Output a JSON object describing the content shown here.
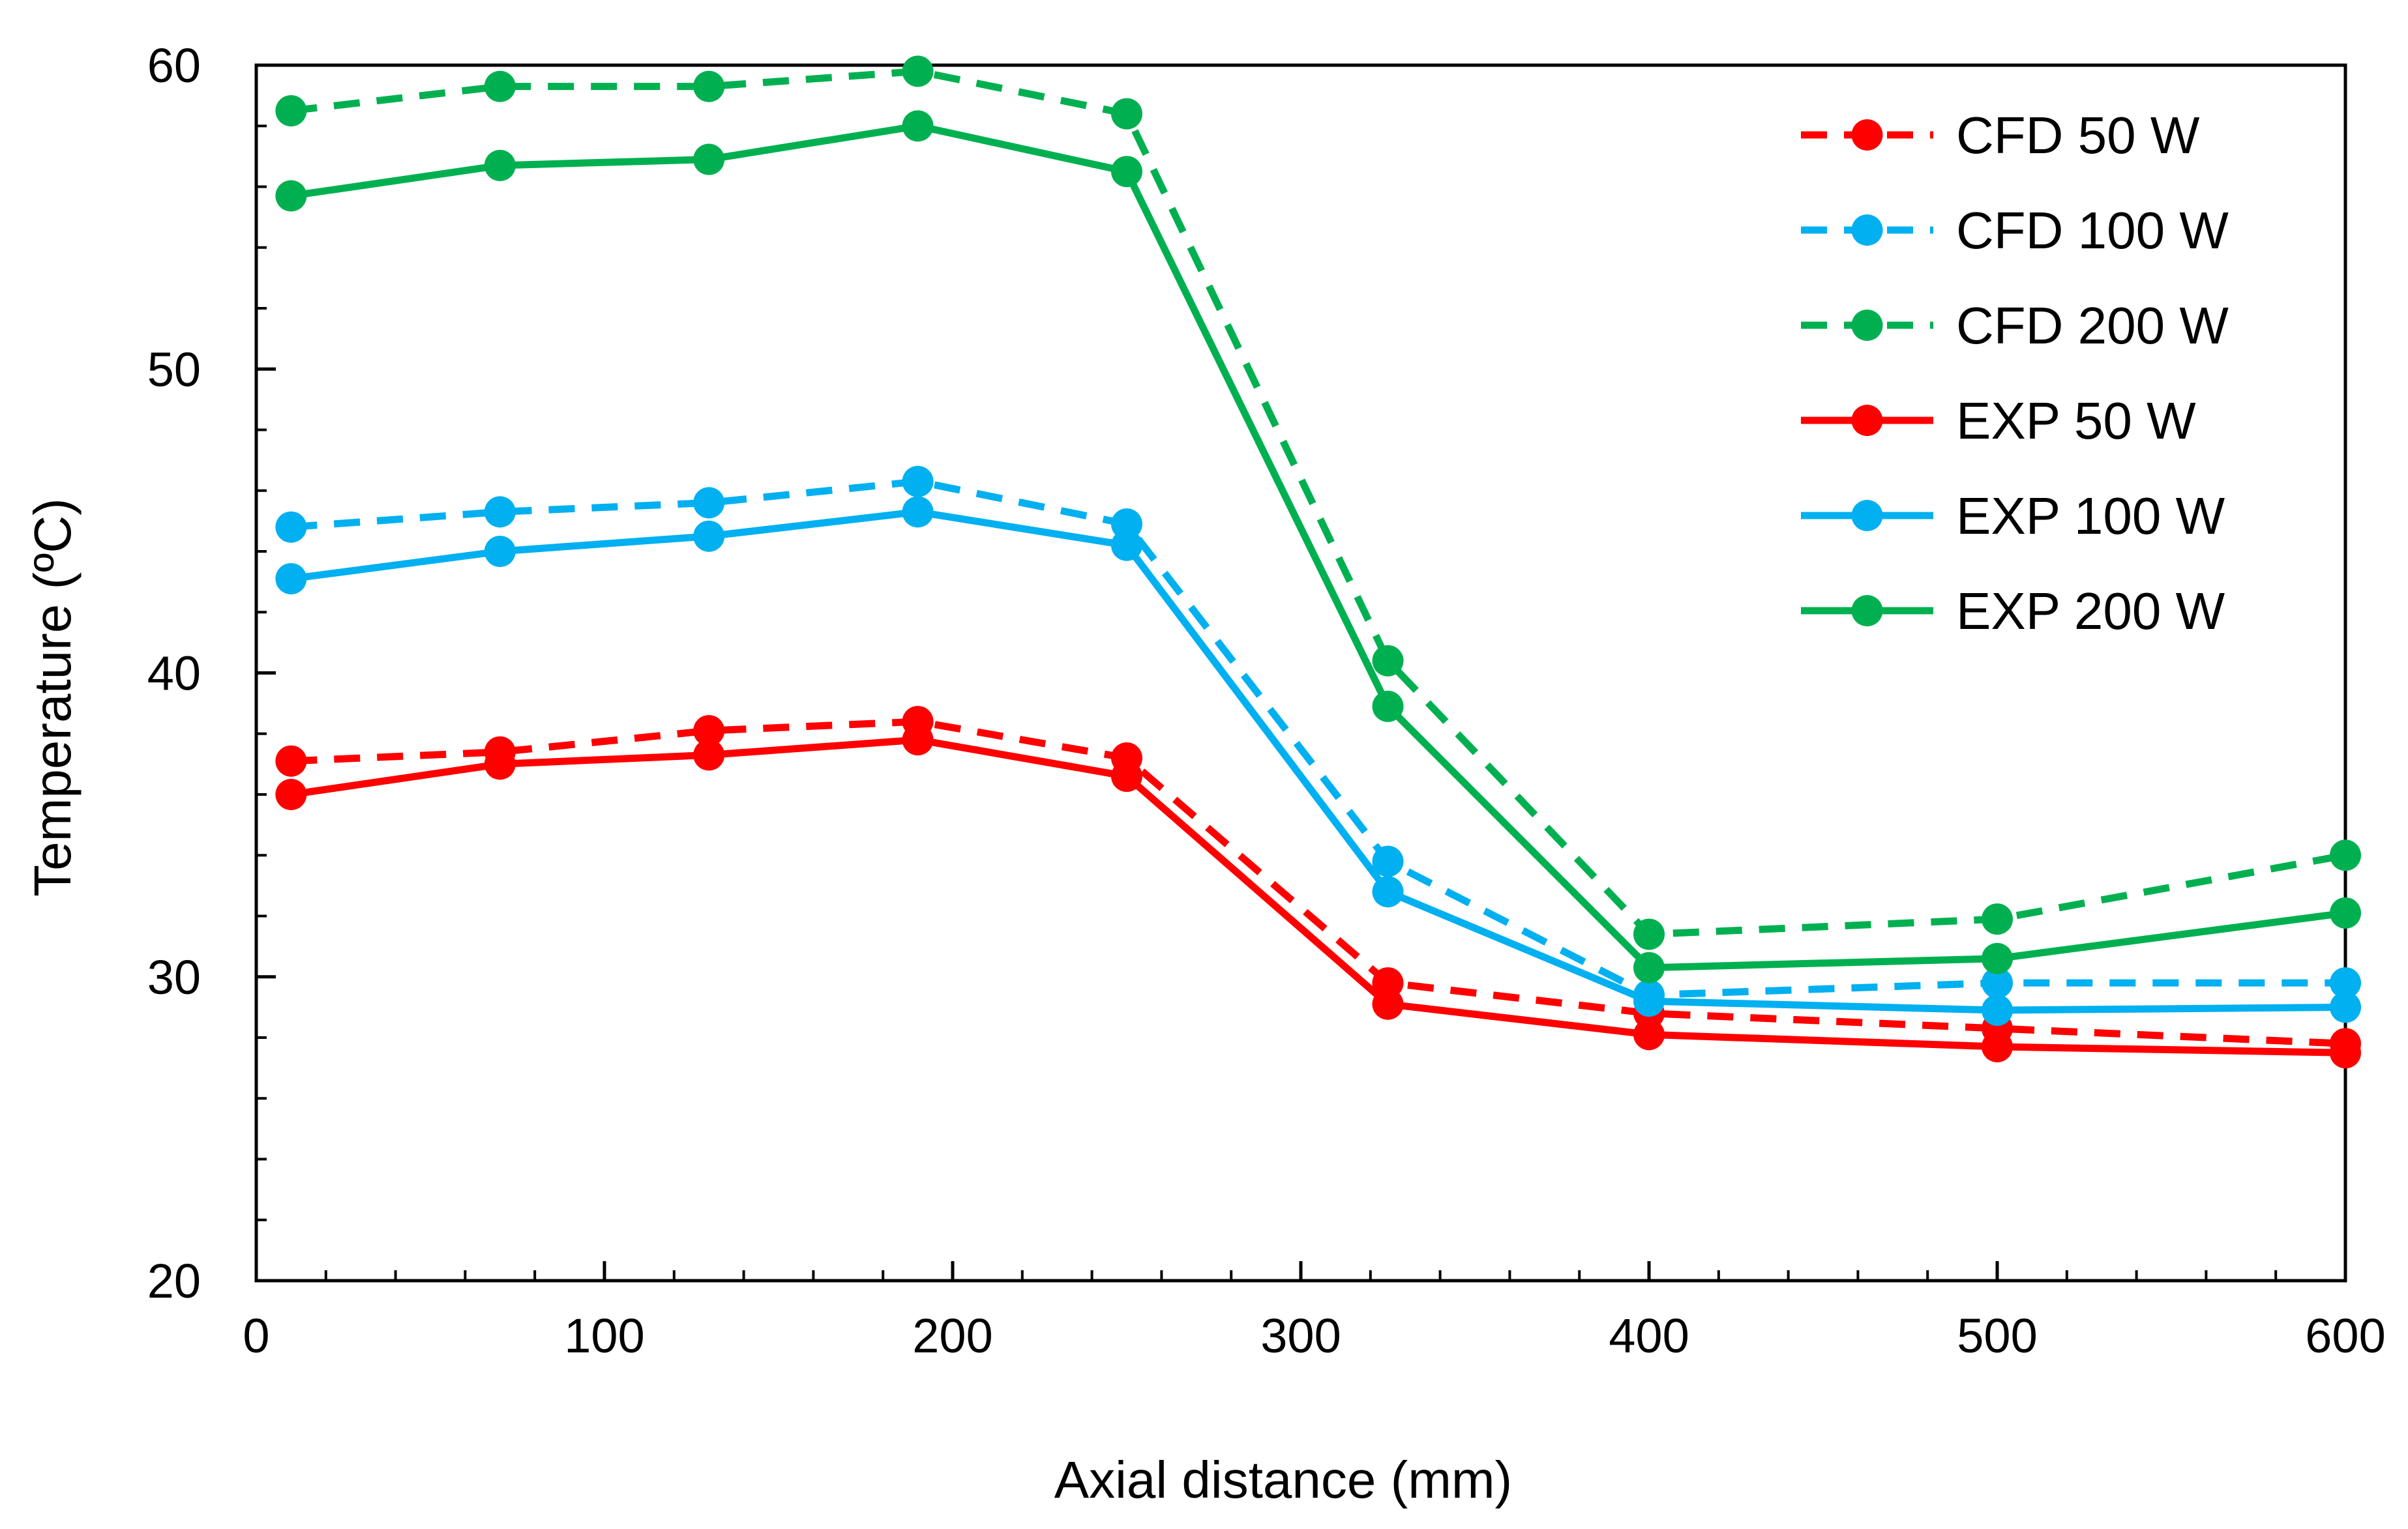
{
  "chart_data": {
    "type": "line",
    "title": "",
    "xlabel": "Axial distance (mm)",
    "ylabel": "Temperature (ºC)",
    "xlim": [
      0,
      600
    ],
    "ylim": [
      20,
      60
    ],
    "x_ticks": [
      0,
      100,
      200,
      300,
      400,
      500,
      600
    ],
    "y_ticks": [
      20,
      30,
      40,
      50,
      60
    ],
    "x_minor_step": 20,
    "y_minor_step": 2,
    "grid": false,
    "legend_position": "top-right",
    "x": [
      10,
      70,
      130,
      190,
      250,
      325,
      400,
      500,
      600
    ],
    "series": [
      {
        "name": "CFD 50 W",
        "color": "#ff0000",
        "style": "dashed",
        "values": [
          37.1,
          37.4,
          38.1,
          38.4,
          37.2,
          29.8,
          28.8,
          28.3,
          27.8
        ]
      },
      {
        "name": "CFD 100 W",
        "color": "#00b0f0",
        "style": "dashed",
        "values": [
          44.8,
          45.3,
          45.6,
          46.3,
          44.9,
          33.8,
          29.4,
          29.8,
          29.8
        ]
      },
      {
        "name": "CFD 200 W",
        "color": "#00b050",
        "style": "dashed",
        "values": [
          58.5,
          59.3,
          59.3,
          59.8,
          58.4,
          40.4,
          31.4,
          31.9,
          34.0
        ]
      },
      {
        "name": "EXP 50 W",
        "color": "#ff0000",
        "style": "solid",
        "values": [
          36.0,
          37.0,
          37.3,
          37.8,
          36.6,
          29.1,
          28.1,
          27.7,
          27.5
        ]
      },
      {
        "name": "EXP 100 W",
        "color": "#00b0f0",
        "style": "solid",
        "values": [
          43.1,
          44.0,
          44.5,
          45.3,
          44.2,
          32.8,
          29.2,
          28.9,
          29.0
        ]
      },
      {
        "name": "EXP 200 W",
        "color": "#00b050",
        "style": "solid",
        "values": [
          55.7,
          56.7,
          56.9,
          58.0,
          56.5,
          38.9,
          30.3,
          30.6,
          32.1
        ]
      }
    ]
  }
}
